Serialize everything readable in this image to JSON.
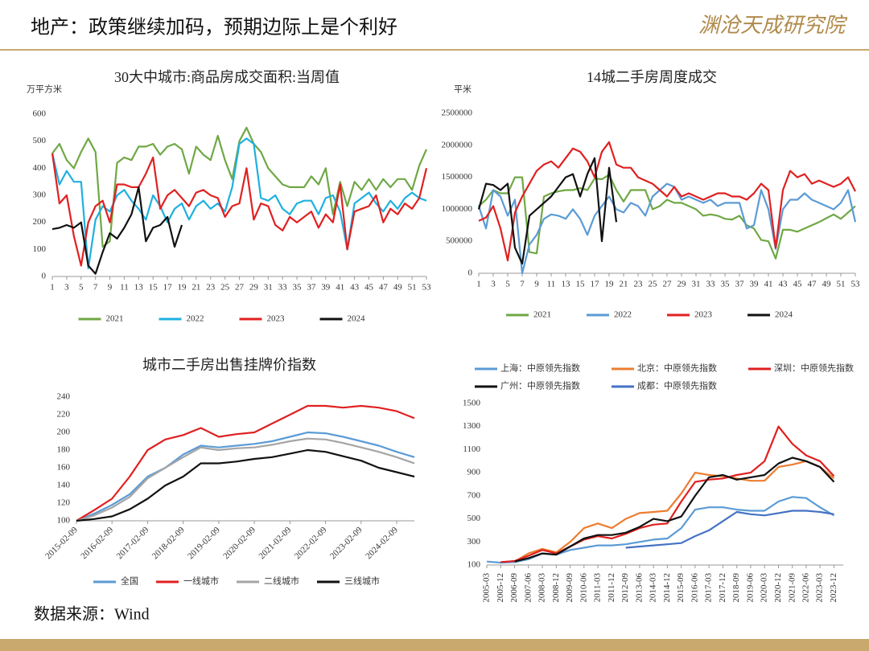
{
  "header": {
    "title": "地产：政策继续加码，预期边际上是个利好",
    "logo": "渊沧天成研究院"
  },
  "footer": {
    "source": "数据来源：Wind"
  },
  "chart_data": [
    {
      "type": "line",
      "title": "30大中城市:商品房成交面积:当周值",
      "y_label": "万平方米",
      "x": [
        1,
        2,
        3,
        4,
        5,
        6,
        7,
        8,
        9,
        10,
        11,
        12,
        13,
        14,
        15,
        16,
        17,
        18,
        19,
        20,
        21,
        22,
        23,
        24,
        25,
        26,
        27,
        28,
        29,
        30,
        31,
        32,
        33,
        34,
        35,
        36,
        37,
        38,
        39,
        40,
        41,
        42,
        43,
        44,
        45,
        46,
        47,
        48,
        49,
        50,
        51,
        52,
        53
      ],
      "xlim": [
        1,
        53
      ],
      "xticks": [
        1,
        3,
        5,
        7,
        9,
        11,
        13,
        15,
        17,
        19,
        21,
        23,
        25,
        27,
        29,
        31,
        33,
        35,
        37,
        39,
        41,
        43,
        45,
        47,
        49,
        51,
        53
      ],
      "ylim": [
        0,
        600
      ],
      "yticks": [
        0,
        100,
        200,
        300,
        400,
        500,
        600
      ],
      "grid": false,
      "legend": "bottom",
      "series": [
        {
          "name": "2021",
          "color": "#70a845",
          "values": [
            455,
            490,
            430,
            400,
            460,
            510,
            460,
            110,
            130,
            420,
            440,
            430,
            480,
            480,
            490,
            450,
            480,
            490,
            470,
            380,
            480,
            450,
            430,
            520,
            430,
            360,
            500,
            550,
            490,
            460,
            400,
            370,
            340,
            330,
            330,
            330,
            370,
            340,
            400,
            230,
            350,
            260,
            350,
            320,
            360,
            320,
            360,
            330,
            360,
            360,
            320,
            410,
            470
          ]
        },
        {
          "name": "2022",
          "color": "#1fb0e0",
          "values": [
            455,
            340,
            390,
            350,
            350,
            30,
            210,
            260,
            240,
            300,
            320,
            280,
            250,
            210,
            300,
            260,
            200,
            250,
            270,
            210,
            260,
            280,
            250,
            270,
            240,
            330,
            490,
            510,
            490,
            290,
            280,
            300,
            250,
            230,
            270,
            280,
            280,
            230,
            290,
            300,
            240,
            100,
            270,
            290,
            310,
            270,
            240,
            280,
            250,
            290,
            310,
            290,
            280
          ]
        },
        {
          "name": "2023",
          "color": "#e02020",
          "values": [
            455,
            270,
            300,
            150,
            40,
            200,
            260,
            280,
            200,
            340,
            340,
            330,
            330,
            380,
            440,
            250,
            300,
            320,
            290,
            260,
            310,
            320,
            300,
            290,
            220,
            260,
            270,
            400,
            210,
            270,
            260,
            190,
            170,
            220,
            200,
            220,
            240,
            180,
            230,
            200,
            340,
            100,
            240,
            250,
            260,
            300,
            200,
            250,
            230,
            270,
            250,
            290,
            400
          ]
        },
        {
          "name": "2024",
          "color": "#111111",
          "values": [
            175,
            180,
            190,
            180,
            200,
            40,
            10,
            90,
            160,
            140,
            180,
            230,
            330,
            130,
            180,
            190,
            220,
            110,
            190,
            null,
            null,
            null,
            null,
            null,
            null,
            null,
            null,
            null,
            null,
            null,
            null,
            null,
            null,
            null,
            null,
            null,
            null,
            null,
            null,
            null,
            null,
            null,
            null,
            null,
            null,
            null,
            null,
            null,
            null,
            null,
            null,
            null,
            null
          ]
        }
      ]
    },
    {
      "type": "line",
      "title": "14城二手房周度成交",
      "y_label": "平米",
      "x": [
        1,
        2,
        3,
        4,
        5,
        6,
        7,
        8,
        9,
        10,
        11,
        12,
        13,
        14,
        15,
        16,
        17,
        18,
        19,
        20,
        21,
        22,
        23,
        24,
        25,
        26,
        27,
        28,
        29,
        30,
        31,
        32,
        33,
        34,
        35,
        36,
        37,
        38,
        39,
        40,
        41,
        42,
        43,
        44,
        45,
        46,
        47,
        48,
        49,
        50,
        51,
        52,
        53
      ],
      "xlim": [
        1,
        53
      ],
      "xticks": [
        1,
        3,
        5,
        7,
        9,
        11,
        13,
        15,
        17,
        19,
        21,
        23,
        25,
        27,
        29,
        31,
        33,
        35,
        37,
        39,
        41,
        43,
        45,
        47,
        49,
        51,
        53
      ],
      "ylim": [
        0,
        2500000
      ],
      "yticks": [
        0,
        500000,
        1000000,
        1500000,
        2000000,
        2500000
      ],
      "grid": false,
      "legend": "bottom",
      "series": [
        {
          "name": "2021",
          "color": "#70a845",
          "values": [
            1050000,
            1150000,
            1300000,
            1250000,
            1250000,
            1500000,
            1500000,
            330000,
            310000,
            1200000,
            1250000,
            1280000,
            1300000,
            1300000,
            1330000,
            1300000,
            1480000,
            1470000,
            1540000,
            1300000,
            1120000,
            1300000,
            1300000,
            1300000,
            1000000,
            1050000,
            1150000,
            1100000,
            1100000,
            1050000,
            1000000,
            900000,
            920000,
            900000,
            850000,
            840000,
            900000,
            750000,
            700000,
            520000,
            500000,
            230000,
            680000,
            680000,
            650000,
            700000,
            750000,
            800000,
            860000,
            920000,
            850000,
            950000,
            1050000
          ]
        },
        {
          "name": "2022",
          "color": "#5b9bd5",
          "values": [
            1050000,
            700000,
            1300000,
            1200000,
            900000,
            1150000,
            0,
            450000,
            600000,
            850000,
            920000,
            900000,
            850000,
            1000000,
            850000,
            600000,
            900000,
            1050000,
            1200000,
            1000000,
            950000,
            1100000,
            1050000,
            900000,
            1200000,
            1300000,
            1400000,
            1350000,
            1150000,
            1200000,
            1150000,
            1100000,
            1150000,
            1050000,
            1100000,
            1100000,
            1100000,
            700000,
            750000,
            1300000,
            1000000,
            380000,
            1000000,
            1150000,
            1150000,
            1250000,
            1150000,
            1100000,
            1050000,
            1000000,
            1100000,
            1300000,
            800000
          ]
        },
        {
          "name": "2023",
          "color": "#e02020",
          "values": [
            820000,
            870000,
            1050000,
            700000,
            200000,
            950000,
            1200000,
            1400000,
            1600000,
            1700000,
            1750000,
            1650000,
            1800000,
            1950000,
            1900000,
            1750000,
            1500000,
            1900000,
            2050000,
            1700000,
            1650000,
            1650000,
            1500000,
            1450000,
            1400000,
            1300000,
            1200000,
            1350000,
            1200000,
            1250000,
            1200000,
            1150000,
            1200000,
            1250000,
            1250000,
            1200000,
            1200000,
            1150000,
            1250000,
            1400000,
            1300000,
            400000,
            1300000,
            1600000,
            1500000,
            1550000,
            1400000,
            1450000,
            1400000,
            1350000,
            1400000,
            1500000,
            1280000
          ]
        },
        {
          "name": "2024",
          "color": "#111111",
          "values": [
            1000000,
            1400000,
            1380000,
            1300000,
            1400000,
            400000,
            150000,
            900000,
            1000000,
            1100000,
            1200000,
            1350000,
            1500000,
            1550000,
            1200000,
            1550000,
            1800000,
            500000,
            1650000,
            800000,
            null,
            null,
            null,
            null,
            null,
            null,
            null,
            null,
            null,
            null,
            null,
            null,
            null,
            null,
            null,
            null,
            null,
            null,
            null,
            null,
            null,
            null,
            null,
            null,
            null,
            null,
            null,
            null,
            null,
            null,
            null,
            null,
            null
          ]
        }
      ]
    },
    {
      "type": "line",
      "title": "城市二手房出售挂牌价指数",
      "x": [
        "2015-02-09",
        "2015-08-09",
        "2016-02-09",
        "2016-08-09",
        "2017-02-09",
        "2017-08-09",
        "2018-02-09",
        "2018-08-09",
        "2019-02-09",
        "2019-08-09",
        "2020-02-09",
        "2020-08-09",
        "2021-02-09",
        "2021-08-09",
        "2022-02-09",
        "2022-08-09",
        "2023-02-09",
        "2023-08-09",
        "2024-02-09",
        "2024-08-09"
      ],
      "xlim": [
        "2015-02-09",
        "2024-08-09"
      ],
      "xticks": [
        "2015-02-09",
        "2016-02-09",
        "2017-02-09",
        "2018-02-09",
        "2019-02-09",
        "2020-02-09",
        "2021-02-09",
        "2022-02-09",
        "2023-02-09",
        "2024-02-09"
      ],
      "ylim": [
        100,
        240
      ],
      "yticks": [
        100,
        120,
        140,
        160,
        180,
        200,
        220,
        240
      ],
      "grid": false,
      "legend": "bottom",
      "series": [
        {
          "name": "全国",
          "color": "#5b9bd5",
          "values": [
            100,
            108,
            118,
            130,
            150,
            160,
            175,
            185,
            183,
            185,
            187,
            190,
            195,
            200,
            199,
            195,
            190,
            185,
            178,
            172
          ]
        },
        {
          "name": "一线城市",
          "color": "#e02020",
          "values": [
            100,
            112,
            125,
            150,
            180,
            192,
            197,
            205,
            195,
            198,
            200,
            210,
            220,
            230,
            230,
            228,
            230,
            228,
            224,
            216
          ]
        },
        {
          "name": "二线城市",
          "color": "#a5a5a5",
          "values": [
            100,
            106,
            115,
            127,
            148,
            160,
            172,
            183,
            180,
            182,
            183,
            186,
            190,
            193,
            192,
            188,
            183,
            178,
            172,
            165
          ]
        },
        {
          "name": "三线城市",
          "color": "#111111",
          "values": [
            100,
            102,
            105,
            113,
            125,
            140,
            150,
            165,
            165,
            167,
            170,
            172,
            176,
            180,
            178,
            173,
            168,
            160,
            155,
            150
          ]
        }
      ]
    },
    {
      "type": "line",
      "x": [
        "2005-03",
        "2005-12",
        "2006-09",
        "2007-06",
        "2008-03",
        "2008-12",
        "2009-09",
        "2010-06",
        "2011-03",
        "2011-12",
        "2012-09",
        "2013-06",
        "2014-03",
        "2014-12",
        "2015-09",
        "2016-06",
        "2017-03",
        "2017-12",
        "2018-09",
        "2019-06",
        "2020-03",
        "2020-12",
        "2021-09",
        "2022-06",
        "2023-03",
        "2023-12"
      ],
      "xlim": [
        "2005-03",
        "2024-06"
      ],
      "xticks": [
        "2005-03",
        "2005-12",
        "2006-09",
        "2007-06",
        "2008-03",
        "2008-12",
        "2009-09",
        "2010-06",
        "2011-03",
        "2011-12",
        "2012-09",
        "2013-06",
        "2014-03",
        "2014-12",
        "2015-09",
        "2016-06",
        "2017-03",
        "2017-12",
        "2018-09",
        "2019-06",
        "2020-03",
        "2020-12",
        "2021-09",
        "2022-06",
        "2023-03",
        "2023-12"
      ],
      "ylim": [
        100,
        1500
      ],
      "yticks": [
        100,
        300,
        500,
        700,
        900,
        1100,
        1300,
        1500
      ],
      "grid": false,
      "legend": "top",
      "series": [
        {
          "name": "上海：中原领先指数",
          "color": "#5b9bd5",
          "values": [
            130,
            120,
            125,
            150,
            200,
            190,
            230,
            250,
            270,
            270,
            280,
            300,
            320,
            330,
            420,
            580,
            600,
            600,
            580,
            570,
            570,
            650,
            690,
            680,
            600,
            530
          ]
        },
        {
          "name": "北京：中原领先指数",
          "color": "#ed7d31",
          "values": [
            null,
            null,
            130,
            200,
            240,
            210,
            300,
            420,
            460,
            420,
            500,
            550,
            560,
            570,
            720,
            900,
            880,
            870,
            850,
            830,
            830,
            950,
            970,
            1000,
            950,
            850
          ]
        },
        {
          "name": "深圳：中原领先指数",
          "color": "#e02020",
          "values": [
            null,
            125,
            135,
            180,
            230,
            200,
            260,
            320,
            350,
            330,
            370,
            420,
            450,
            460,
            650,
            820,
            840,
            850,
            880,
            900,
            1000,
            1300,
            1150,
            1050,
            1000,
            870
          ]
        },
        {
          "name": "广州：中原领先指数",
          "color": "#111111",
          "values": [
            null,
            null,
            130,
            160,
            200,
            190,
            260,
            330,
            360,
            360,
            380,
            430,
            500,
            480,
            520,
            700,
            860,
            880,
            840,
            860,
            880,
            980,
            1030,
            1000,
            950,
            820
          ]
        },
        {
          "name": "成都：中原领先指数",
          "color": "#4472c4",
          "values": [
            null,
            null,
            null,
            null,
            null,
            null,
            null,
            null,
            null,
            null,
            250,
            260,
            270,
            280,
            290,
            350,
            400,
            480,
            560,
            540,
            530,
            550,
            570,
            570,
            560,
            540
          ]
        }
      ]
    }
  ]
}
